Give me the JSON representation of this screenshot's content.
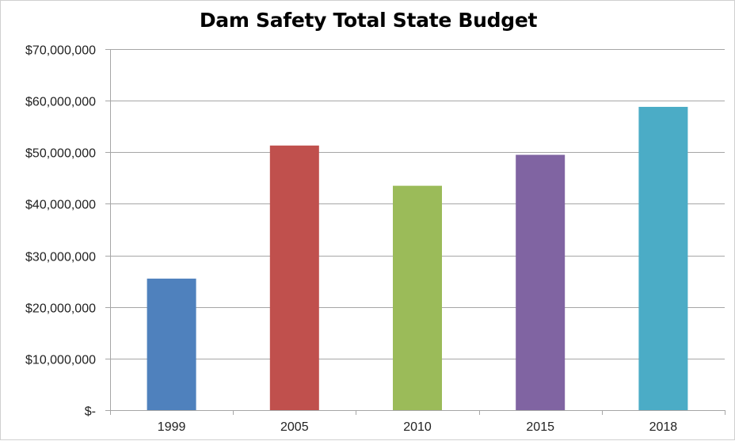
{
  "chart_data": {
    "type": "bar",
    "title": "Dam Safety Total State Budget",
    "xlabel": "",
    "ylabel": "",
    "categories": [
      "1999",
      "2005",
      "2010",
      "2015",
      "2018"
    ],
    "values": [
      25500000,
      51300000,
      43500000,
      49500000,
      58800000
    ],
    "colors": [
      "#4f81bd",
      "#c0504d",
      "#9bbb59",
      "#8064a2",
      "#4bacc6"
    ],
    "ylim": [
      0,
      70000000
    ],
    "yticks": [
      0,
      10000000,
      20000000,
      30000000,
      40000000,
      50000000,
      60000000,
      70000000
    ],
    "ytick_labels": [
      "$-",
      "$10,000,000",
      "$20,000,000",
      "$30,000,000",
      "$40,000,000",
      "$50,000,000",
      "$60,000,000",
      "$70,000,000"
    ],
    "grid": true,
    "legend": "none"
  }
}
